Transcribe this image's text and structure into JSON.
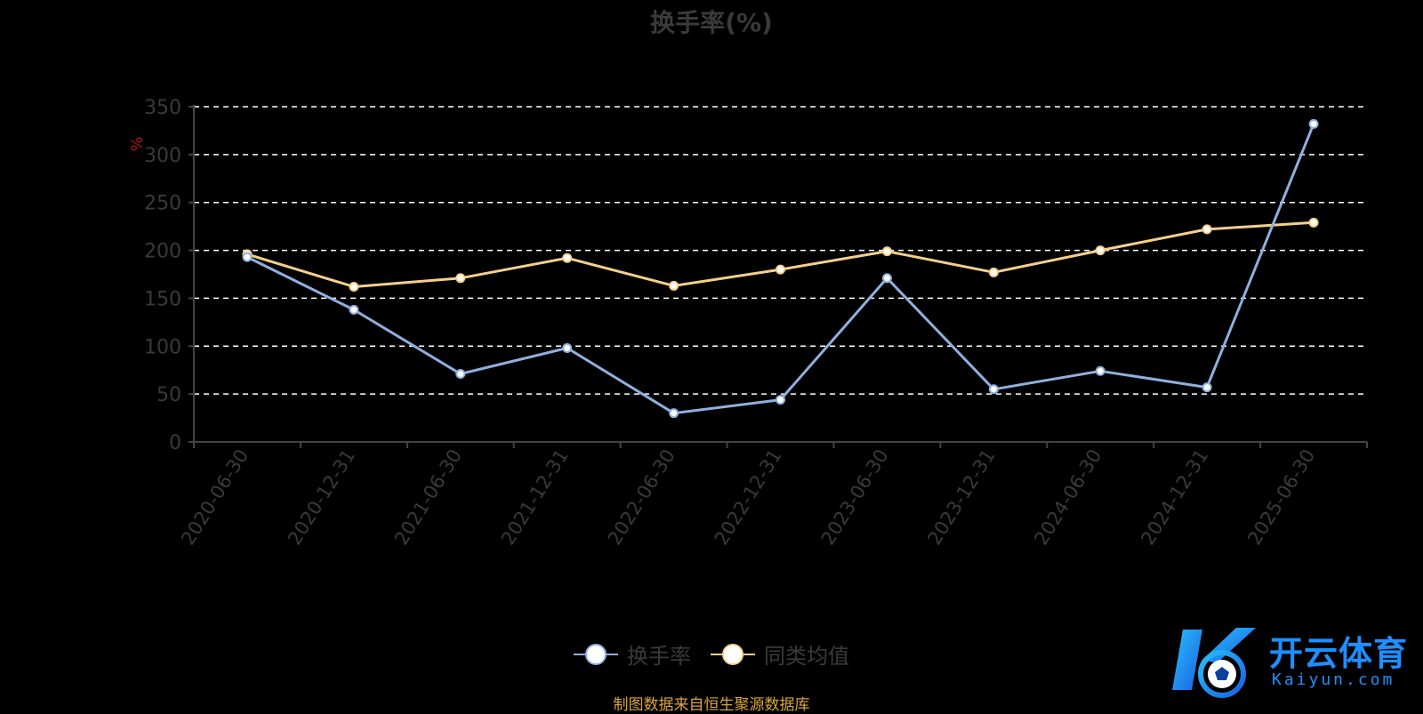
{
  "chart_data": {
    "type": "line",
    "title": "换手率(%)",
    "ylabel": "%",
    "xlabel": "",
    "ylim": [
      0,
      350
    ],
    "y_ticks": [
      0,
      50,
      100,
      150,
      200,
      250,
      300,
      350
    ],
    "grid": true,
    "legend_position": "bottom",
    "categories": [
      "2020-06-30",
      "2020-12-31",
      "2021-06-30",
      "2021-12-31",
      "2022-06-30",
      "2022-12-31",
      "2023-06-30",
      "2023-12-31",
      "2024-06-30",
      "2024-12-31",
      "2025-06-30"
    ],
    "series": [
      {
        "name": "换手率",
        "color": "#8fb0de",
        "values": [
          193,
          138,
          71,
          98,
          30,
          44,
          171,
          55,
          74,
          57,
          332
        ]
      },
      {
        "name": "同类均值",
        "color": "#f5d08b",
        "values": [
          196,
          162,
          171,
          192,
          163,
          180,
          199,
          177,
          200,
          222,
          229
        ]
      }
    ]
  },
  "footer": {
    "source_note": "制图数据来自恒生聚源数据库"
  },
  "watermark": {
    "text": "开云体育",
    "subtext": "Kaiyun.com"
  },
  "colors": {
    "background": "#000000",
    "axis": "#444444",
    "grid": "#ffffff",
    "text_dim": "#3a3a3a",
    "ylabel": "#aa1111",
    "source_note": "#d9a53a",
    "watermark": "#1e8fff"
  }
}
